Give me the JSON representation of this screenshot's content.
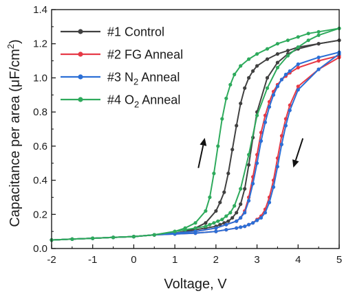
{
  "chart_data": {
    "type": "line",
    "xlabel": "Voltage, V",
    "ylabel": "Capacitance per area (μF/cm",
    "ylabel_sup": "2",
    "ylabel_close": ")",
    "xlim": [
      -2,
      5
    ],
    "ylim": [
      0,
      1.4
    ],
    "xticks": [
      -2,
      -1,
      0,
      1,
      2,
      3,
      4,
      5
    ],
    "yticks": [
      0.0,
      0.2,
      0.4,
      0.6,
      0.8,
      1.0,
      1.2,
      1.4
    ],
    "xtick_labels": [
      "-2",
      "-1",
      "0",
      "1",
      "2",
      "3",
      "4",
      "5"
    ],
    "ytick_labels": [
      "0.0",
      "0.2",
      "0.4",
      "0.6",
      "0.8",
      "1.0",
      "1.2",
      "1.4"
    ],
    "grid": false,
    "legend_position": "top-left",
    "annotations": [
      {
        "type": "arrow",
        "direction": "up",
        "x": 1.65,
        "y_from": 0.47,
        "y_to": 0.65
      },
      {
        "type": "arrow",
        "direction": "down",
        "x": 4.0,
        "y_from": 0.65,
        "y_to": 0.47
      }
    ],
    "series": [
      {
        "name_main": "#1 Control",
        "name_sub": "",
        "name_tail": "",
        "color": "#404040",
        "x": [
          -2,
          -1.5,
          -1,
          -0.5,
          0,
          0.5,
          1,
          1.25,
          1.5,
          1.75,
          2,
          2.1,
          2.2,
          2.3,
          2.4,
          2.5,
          2.6,
          2.7,
          2.8,
          2.9,
          3,
          3.25,
          3.5,
          3.75,
          4,
          4.5,
          5
        ],
        "up": [
          0.05,
          0.055,
          0.06,
          0.065,
          0.07,
          0.08,
          0.09,
          0.1,
          0.12,
          0.15,
          0.22,
          0.27,
          0.33,
          0.44,
          0.58,
          0.72,
          0.85,
          0.94,
          1.0,
          1.04,
          1.07,
          1.11,
          1.14,
          1.16,
          1.18,
          1.2,
          1.22
        ],
        "down": [
          0.05,
          0.055,
          0.06,
          0.065,
          0.07,
          0.08,
          0.09,
          0.1,
          0.11,
          0.12,
          0.13,
          0.14,
          0.15,
          0.16,
          0.18,
          0.21,
          0.26,
          0.35,
          0.49,
          0.65,
          0.8,
          1.0,
          1.09,
          1.14,
          1.17,
          1.2,
          1.22
        ]
      },
      {
        "name_main": "#2 FG Anneal",
        "name_sub": "",
        "name_tail": "",
        "color": "#e63946",
        "x": [
          -2,
          -1.5,
          -1,
          -0.5,
          0,
          0.5,
          1,
          1.5,
          2,
          2.25,
          2.5,
          2.6,
          2.7,
          2.8,
          2.9,
          3,
          3.1,
          3.2,
          3.3,
          3.4,
          3.5,
          3.6,
          3.7,
          3.8,
          4,
          4.5,
          5
        ],
        "up": [
          0.05,
          0.055,
          0.06,
          0.065,
          0.07,
          0.08,
          0.09,
          0.1,
          0.12,
          0.14,
          0.16,
          0.18,
          0.22,
          0.3,
          0.42,
          0.55,
          0.68,
          0.78,
          0.86,
          0.92,
          0.96,
          0.99,
          1.01,
          1.03,
          1.06,
          1.1,
          1.13
        ],
        "down": [
          0.05,
          0.055,
          0.06,
          0.065,
          0.07,
          0.08,
          0.085,
          0.09,
          0.1,
          0.11,
          0.12,
          0.125,
          0.13,
          0.14,
          0.15,
          0.17,
          0.19,
          0.23,
          0.3,
          0.4,
          0.53,
          0.66,
          0.76,
          0.84,
          0.95,
          1.05,
          1.12
        ]
      },
      {
        "name_main": "#3 N",
        "name_sub": "2",
        "name_tail": " Anneal",
        "color": "#2b6fd6",
        "x": [
          -2,
          -1.5,
          -1,
          -0.5,
          0,
          0.5,
          1,
          1.5,
          2,
          2.25,
          2.5,
          2.6,
          2.7,
          2.8,
          2.9,
          3,
          3.1,
          3.2,
          3.3,
          3.4,
          3.5,
          3.6,
          3.7,
          3.8,
          4,
          4.5,
          5
        ],
        "up": [
          0.05,
          0.055,
          0.06,
          0.065,
          0.07,
          0.08,
          0.09,
          0.1,
          0.12,
          0.14,
          0.16,
          0.18,
          0.21,
          0.28,
          0.38,
          0.5,
          0.63,
          0.74,
          0.83,
          0.9,
          0.95,
          0.99,
          1.02,
          1.04,
          1.08,
          1.12,
          1.15
        ],
        "down": [
          0.05,
          0.055,
          0.06,
          0.065,
          0.07,
          0.08,
          0.085,
          0.09,
          0.1,
          0.11,
          0.12,
          0.125,
          0.13,
          0.14,
          0.15,
          0.165,
          0.18,
          0.21,
          0.27,
          0.36,
          0.48,
          0.61,
          0.72,
          0.81,
          0.93,
          1.05,
          1.14
        ]
      },
      {
        "name_main": "#4 O",
        "name_sub": "2",
        "name_tail": " Anneal",
        "color": "#2eaa5c",
        "x": [
          -2,
          -1.5,
          -1,
          -0.5,
          0,
          0.5,
          1,
          1.25,
          1.5,
          1.75,
          1.85,
          1.95,
          2.05,
          2.15,
          2.25,
          2.35,
          2.45,
          2.6,
          2.8,
          3,
          3.25,
          3.5,
          3.75,
          4,
          4.25,
          4.5,
          5
        ],
        "up": [
          0.05,
          0.055,
          0.06,
          0.065,
          0.07,
          0.08,
          0.1,
          0.12,
          0.15,
          0.22,
          0.3,
          0.44,
          0.6,
          0.76,
          0.88,
          0.96,
          1.02,
          1.07,
          1.11,
          1.14,
          1.17,
          1.2,
          1.22,
          1.24,
          1.26,
          1.27,
          1.29
        ],
        "down": [
          0.05,
          0.055,
          0.06,
          0.065,
          0.07,
          0.08,
          0.1,
          0.11,
          0.12,
          0.13,
          0.14,
          0.15,
          0.16,
          0.17,
          0.19,
          0.21,
          0.25,
          0.35,
          0.55,
          0.78,
          0.94,
          1.06,
          1.13,
          1.18,
          1.22,
          1.25,
          1.29
        ]
      }
    ]
  }
}
